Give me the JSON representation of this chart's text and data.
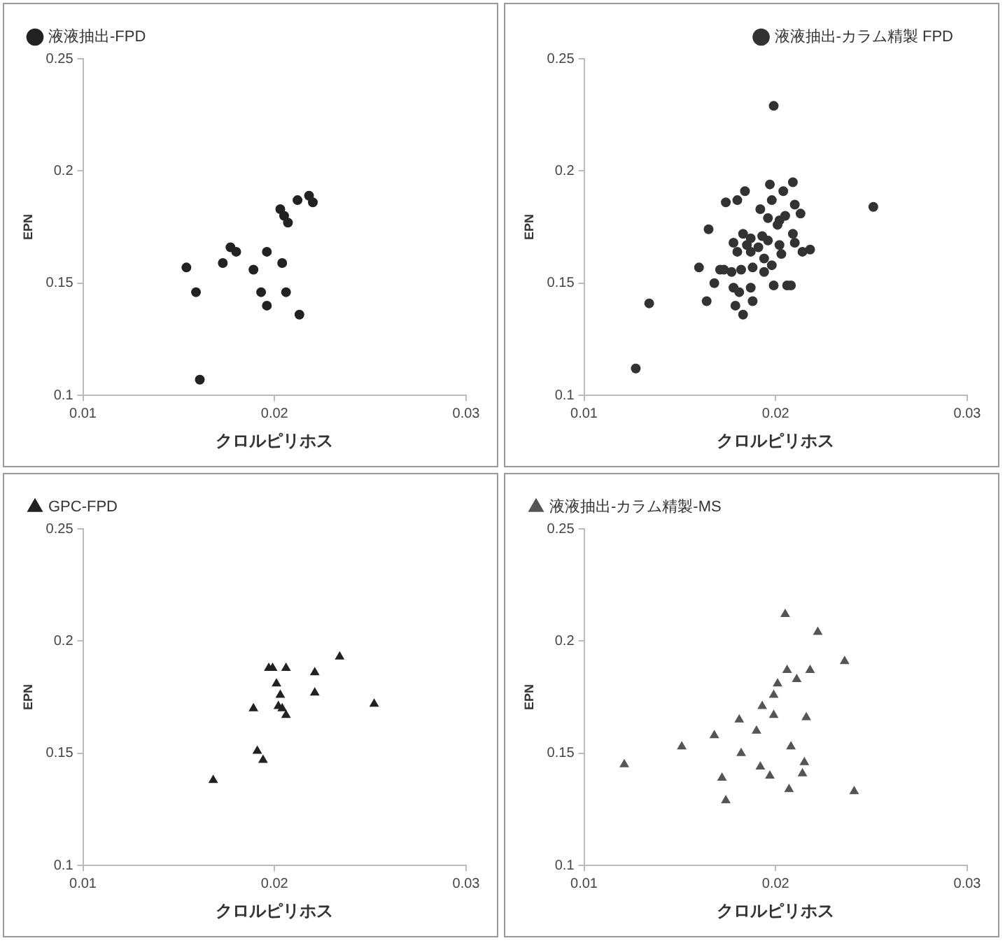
{
  "chart_data": [
    {
      "type": "scatter",
      "xlabel": "クロルピリホス",
      "ylabel": "EPN",
      "xlim": [
        0.01,
        0.03
      ],
      "xticks": [
        0.01,
        0.02,
        0.03
      ],
      "ylim": [
        0.1,
        0.25
      ],
      "yticks": [
        0.1,
        0.15,
        0.2,
        0.25
      ],
      "grid": false,
      "legend": "top left",
      "marker": "circle",
      "x": [
        0.0154,
        0.0159,
        0.0161,
        0.0173,
        0.0177,
        0.018,
        0.0189,
        0.0193,
        0.0196,
        0.0196,
        0.0204,
        0.0206,
        0.0203,
        0.0205,
        0.0207,
        0.0212,
        0.0213,
        0.0218,
        0.022
      ],
      "series": [
        {
          "name": "液液抽出-FPD",
          "color": "#222222",
          "values": [
            0.157,
            0.146,
            0.107,
            0.159,
            0.166,
            0.164,
            0.156,
            0.146,
            0.14,
            0.164,
            0.159,
            0.146,
            0.183,
            0.18,
            0.177,
            0.187,
            0.136,
            0.189,
            0.186
          ]
        }
      ]
    },
    {
      "type": "scatter",
      "xlabel": "クロルピリホス",
      "ylabel": "EPN",
      "xlim": [
        0.01,
        0.03
      ],
      "xticks": [
        0.01,
        0.02,
        0.03
      ],
      "ylim": [
        0.1,
        0.25
      ],
      "yticks": [
        0.1,
        0.15,
        0.2,
        0.25
      ],
      "grid": false,
      "legend": "top right",
      "marker": "circle",
      "x": [
        0.0127,
        0.0134,
        0.0164,
        0.0165,
        0.016,
        0.0168,
        0.0171,
        0.0173,
        0.0174,
        0.018,
        0.0184,
        0.0178,
        0.018,
        0.0177,
        0.0178,
        0.0179,
        0.0181,
        0.0183,
        0.0183,
        0.0182,
        0.0185,
        0.0187,
        0.0187,
        0.0188,
        0.0187,
        0.0188,
        0.0191,
        0.0192,
        0.0193,
        0.0194,
        0.0194,
        0.0196,
        0.0197,
        0.0198,
        0.0199,
        0.0196,
        0.0198,
        0.0199,
        0.0201,
        0.0202,
        0.0202,
        0.0203,
        0.0204,
        0.0205,
        0.0206,
        0.0208,
        0.0209,
        0.0209,
        0.021,
        0.021,
        0.0213,
        0.0214,
        0.0218,
        0.0251
      ],
      "series": [
        {
          "name": "液液抽出-カラム精製 FPD",
          "color": "#333333",
          "values": [
            0.112,
            0.141,
            0.142,
            0.174,
            0.157,
            0.15,
            0.156,
            0.156,
            0.186,
            0.187,
            0.191,
            0.168,
            0.164,
            0.155,
            0.148,
            0.14,
            0.146,
            0.136,
            0.172,
            0.156,
            0.167,
            0.17,
            0.164,
            0.157,
            0.148,
            0.142,
            0.166,
            0.183,
            0.171,
            0.161,
            0.155,
            0.179,
            0.194,
            0.187,
            0.229,
            0.169,
            0.158,
            0.149,
            0.176,
            0.178,
            0.167,
            0.163,
            0.191,
            0.18,
            0.149,
            0.149,
            0.172,
            0.195,
            0.168,
            0.185,
            0.181,
            0.164,
            0.165,
            0.184
          ]
        }
      ]
    },
    {
      "type": "scatter",
      "xlabel": "クロルピリホス",
      "ylabel": "EPN",
      "xlim": [
        0.01,
        0.03
      ],
      "xticks": [
        0.01,
        0.02,
        0.03
      ],
      "ylim": [
        0.1,
        0.25
      ],
      "yticks": [
        0.1,
        0.15,
        0.2,
        0.25
      ],
      "grid": false,
      "legend": "top left",
      "marker": "triangle",
      "x": [
        0.0168,
        0.0189,
        0.0191,
        0.0194,
        0.0197,
        0.0199,
        0.0201,
        0.0203,
        0.0202,
        0.0204,
        0.0206,
        0.0206,
        0.0221,
        0.0221,
        0.0234,
        0.0252
      ],
      "series": [
        {
          "name": "GPC-FPD",
          "color": "#222222",
          "values": [
            0.138,
            0.17,
            0.151,
            0.147,
            0.188,
            0.188,
            0.181,
            0.176,
            0.171,
            0.17,
            0.167,
            0.188,
            0.186,
            0.177,
            0.193,
            0.172
          ]
        }
      ]
    },
    {
      "type": "scatter",
      "xlabel": "クロルピリホス",
      "ylabel": "EPN",
      "xlim": [
        0.01,
        0.03
      ],
      "xticks": [
        0.01,
        0.02,
        0.03
      ],
      "ylim": [
        0.1,
        0.25
      ],
      "yticks": [
        0.1,
        0.15,
        0.2,
        0.25
      ],
      "grid": false,
      "legend": "top left",
      "marker": "triangle",
      "x": [
        0.0121,
        0.0151,
        0.0168,
        0.0172,
        0.0174,
        0.0181,
        0.0182,
        0.019,
        0.0193,
        0.0192,
        0.0197,
        0.0199,
        0.0199,
        0.0201,
        0.0205,
        0.0206,
        0.0208,
        0.0207,
        0.0211,
        0.0214,
        0.0215,
        0.0216,
        0.0218,
        0.0222,
        0.0236,
        0.0241
      ],
      "series": [
        {
          "name": "液液抽出-カラム精製-MS",
          "color": "#555555",
          "values": [
            0.145,
            0.153,
            0.158,
            0.139,
            0.129,
            0.165,
            0.15,
            0.16,
            0.171,
            0.144,
            0.14,
            0.167,
            0.176,
            0.181,
            0.212,
            0.187,
            0.153,
            0.134,
            0.183,
            0.141,
            0.146,
            0.166,
            0.187,
            0.204,
            0.191,
            0.133
          ]
        }
      ]
    }
  ]
}
